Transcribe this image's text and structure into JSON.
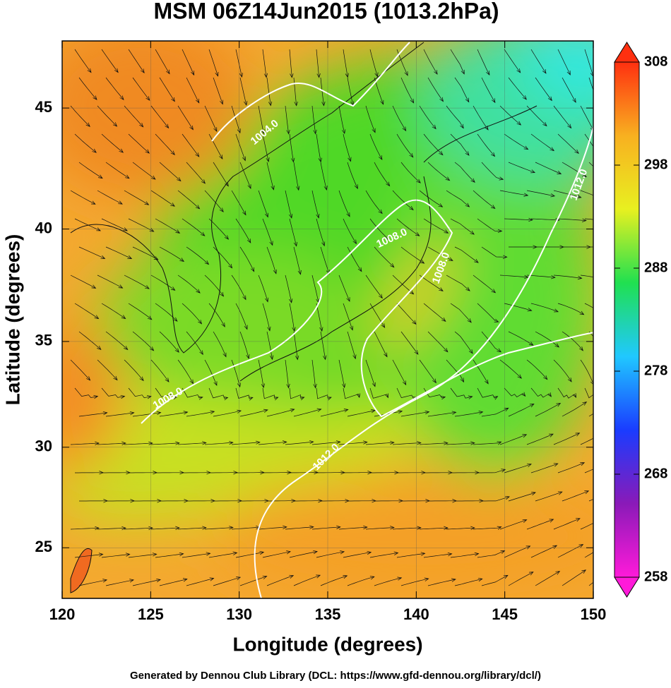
{
  "chart_data": {
    "type": "map",
    "title": "MSM 06Z14Jun2015 (1013.2hPa)",
    "xlabel": "Longitude (degrees)",
    "ylabel": "Latitude  (degrees)",
    "projection": "mercator",
    "xlim": [
      120,
      150
    ],
    "ylim": [
      22.4,
      47.6
    ],
    "xticks": [
      120,
      125,
      130,
      135,
      140,
      145,
      150
    ],
    "yticks": [
      25,
      30,
      35,
      40,
      45
    ],
    "grid": true,
    "colorbar": {
      "lim": [
        258,
        308
      ],
      "ticks": [
        258,
        268,
        278,
        288,
        298,
        308
      ],
      "colors": [
        "#ff1ad9",
        "#8a1ab8",
        "#1a3cff",
        "#20c8ff",
        "#20e050",
        "#e8f020",
        "#f8b020",
        "#ff3010"
      ]
    },
    "contour_labels": [
      "1004.0",
      "1008.0",
      "1012.0",
      "1008.0",
      "1012.0",
      "1008.0"
    ]
  },
  "footer": "Generated by Dennou Club Library (DCL: https://www.gfd-dennou.org/library/dcl/)"
}
